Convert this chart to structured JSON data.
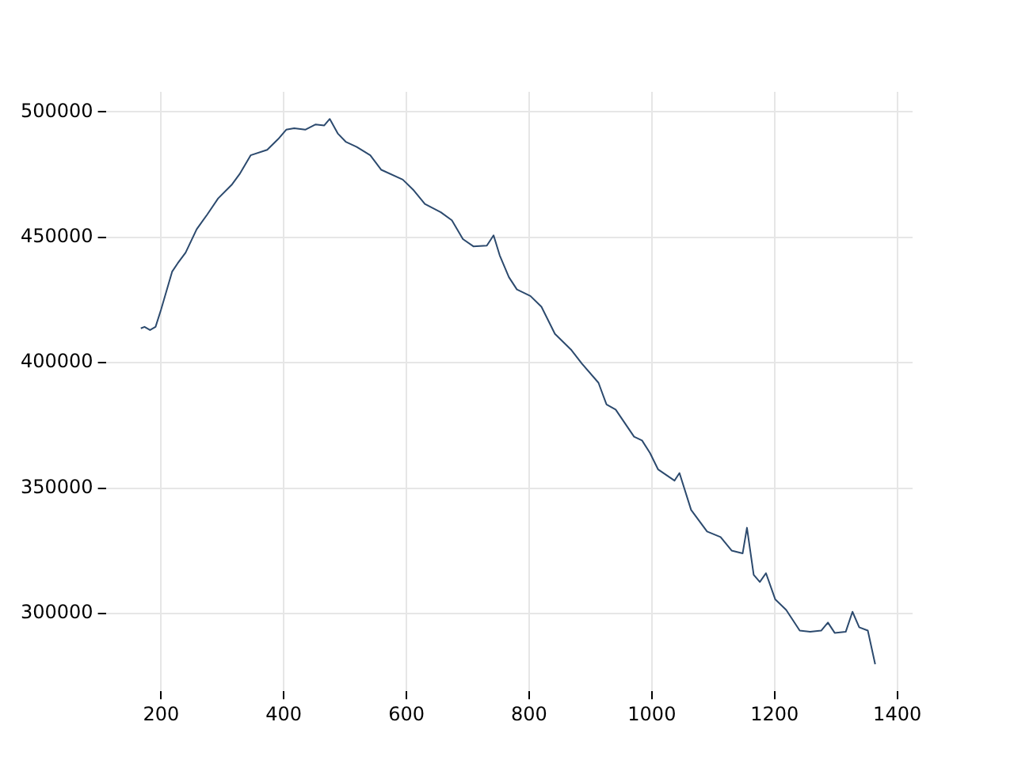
{
  "chart_data": {
    "type": "line",
    "x": [
      167,
      173,
      182,
      191,
      200,
      218,
      227,
      240,
      258,
      275,
      293,
      315,
      328,
      346,
      373,
      391,
      404,
      417,
      435,
      452,
      466,
      475,
      488,
      501,
      519,
      541,
      559,
      594,
      612,
      630,
      656,
      674,
      692,
      709,
      731,
      742,
      752,
      767,
      780,
      802,
      820,
      842,
      869,
      886,
      913,
      926,
      941,
      971,
      984,
      997,
      1010,
      1037,
      1045,
      1064,
      1090,
      1112,
      1130,
      1148,
      1155,
      1166,
      1176,
      1186,
      1201,
      1219,
      1241,
      1258,
      1276,
      1287,
      1298,
      1316,
      1327,
      1338,
      1352,
      1364
    ],
    "series": [
      {
        "color": "#2c4a6e",
        "values": [
          413700,
          414300,
          413000,
          414300,
          421200,
          436300,
          439600,
          443900,
          453200,
          459000,
          465500,
          470900,
          475200,
          482700,
          484900,
          489200,
          492900,
          493500,
          492900,
          495000,
          494600,
          497200,
          491400,
          488100,
          486000,
          482700,
          476900,
          473000,
          468700,
          463300,
          460000,
          456800,
          449300,
          446400,
          446700,
          450800,
          442800,
          434100,
          429200,
          426600,
          422300,
          411500,
          405000,
          399600,
          392000,
          383400,
          381300,
          370500,
          369000,
          364000,
          357500,
          353000,
          356000,
          341300,
          332700,
          330500,
          325100,
          324000,
          334200,
          315400,
          312600,
          316100,
          305700,
          301400,
          293200,
          292700,
          293200,
          296400,
          292300,
          292700,
          300700,
          294500,
          293200,
          279800
        ]
      }
    ],
    "xlim": [
      110,
      1425
    ],
    "xticks": [
      200,
      400,
      600,
      800,
      1000,
      1200,
      1400
    ],
    "ylim": [
      269000,
      508000
    ],
    "yticks": [
      300000,
      350000,
      400000,
      450000,
      500000
    ],
    "grid": true,
    "legend": false,
    "marker": "none",
    "line_style": "solid"
  }
}
